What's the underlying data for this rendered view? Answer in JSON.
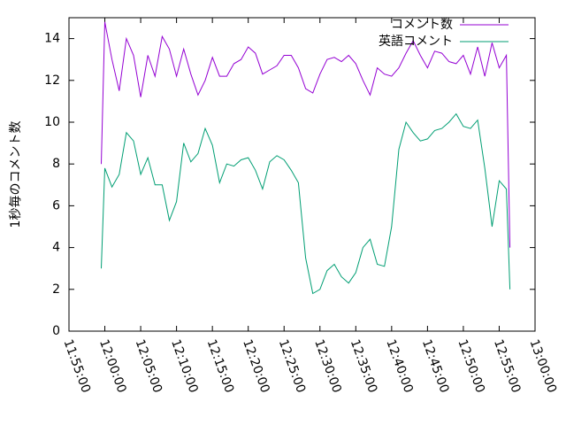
{
  "chart_data": {
    "type": "line",
    "y_label": "1秒毎のコメント数",
    "xlim": [
      "11:55:00",
      "13:00:00"
    ],
    "xticks": [
      "11:55:00",
      "12:00:00",
      "12:05:00",
      "12:10:00",
      "12:15:00",
      "12:20:00",
      "12:25:00",
      "12:30:00",
      "12:35:00",
      "12:40:00",
      "12:45:00",
      "12:50:00",
      "12:55:00",
      "13:00:00"
    ],
    "ylim": [
      0,
      15
    ],
    "yticks": [
      0,
      2,
      4,
      6,
      8,
      10,
      12,
      14
    ],
    "legend": "top-right",
    "x": [
      "11:59:30",
      "12:00:00",
      "12:01:00",
      "12:02:00",
      "12:03:00",
      "12:04:00",
      "12:05:00",
      "12:06:00",
      "12:07:00",
      "12:08:00",
      "12:09:00",
      "12:10:00",
      "12:11:00",
      "12:12:00",
      "12:13:00",
      "12:14:00",
      "12:15:00",
      "12:16:00",
      "12:17:00",
      "12:18:00",
      "12:19:00",
      "12:20:00",
      "12:21:00",
      "12:22:00",
      "12:23:00",
      "12:24:00",
      "12:25:00",
      "12:26:00",
      "12:27:00",
      "12:28:00",
      "12:29:00",
      "12:30:00",
      "12:31:00",
      "12:32:00",
      "12:33:00",
      "12:34:00",
      "12:35:00",
      "12:36:00",
      "12:37:00",
      "12:38:00",
      "12:39:00",
      "12:40:00",
      "12:41:00",
      "12:42:00",
      "12:43:00",
      "12:44:00",
      "12:45:00",
      "12:46:00",
      "12:47:00",
      "12:48:00",
      "12:49:00",
      "12:50:00",
      "12:51:00",
      "12:52:00",
      "12:53:00",
      "12:54:00",
      "12:55:00",
      "12:56:00",
      "12:56:30"
    ],
    "series": [
      {
        "name": "コメント数",
        "color": "#9400d3",
        "values": [
          8.0,
          14.8,
          13.0,
          11.5,
          14.0,
          13.2,
          11.2,
          13.2,
          12.2,
          14.1,
          13.5,
          12.2,
          13.5,
          12.3,
          11.3,
          12.0,
          13.1,
          12.2,
          12.2,
          12.8,
          13.0,
          13.6,
          13.3,
          12.3,
          12.5,
          12.7,
          13.2,
          13.2,
          12.6,
          11.6,
          11.4,
          12.3,
          13.0,
          13.1,
          12.9,
          13.2,
          12.8,
          12.0,
          11.3,
          12.6,
          12.3,
          12.2,
          12.6,
          13.3,
          13.9,
          13.2,
          12.6,
          13.4,
          13.3,
          12.9,
          12.8,
          13.2,
          12.3,
          13.6,
          12.2,
          13.8,
          12.6,
          13.2,
          4.0
        ]
      },
      {
        "name": "英語コメント",
        "color": "#009e73",
        "values": [
          3.0,
          7.8,
          6.9,
          7.5,
          9.5,
          9.1,
          7.5,
          8.3,
          7.0,
          7.0,
          5.3,
          6.2,
          9.0,
          8.1,
          8.5,
          9.7,
          8.9,
          7.1,
          8.0,
          7.9,
          8.2,
          8.3,
          7.7,
          6.8,
          8.1,
          8.4,
          8.2,
          7.7,
          7.1,
          3.5,
          1.8,
          2.0,
          2.9,
          3.2,
          2.6,
          2.3,
          2.8,
          4.0,
          4.4,
          3.2,
          3.1,
          5.0,
          8.7,
          10.0,
          9.5,
          9.1,
          9.2,
          9.6,
          9.7,
          10.0,
          10.4,
          9.8,
          9.7,
          10.1,
          7.8,
          5.0,
          7.2,
          6.8,
          2.0
        ]
      }
    ]
  }
}
